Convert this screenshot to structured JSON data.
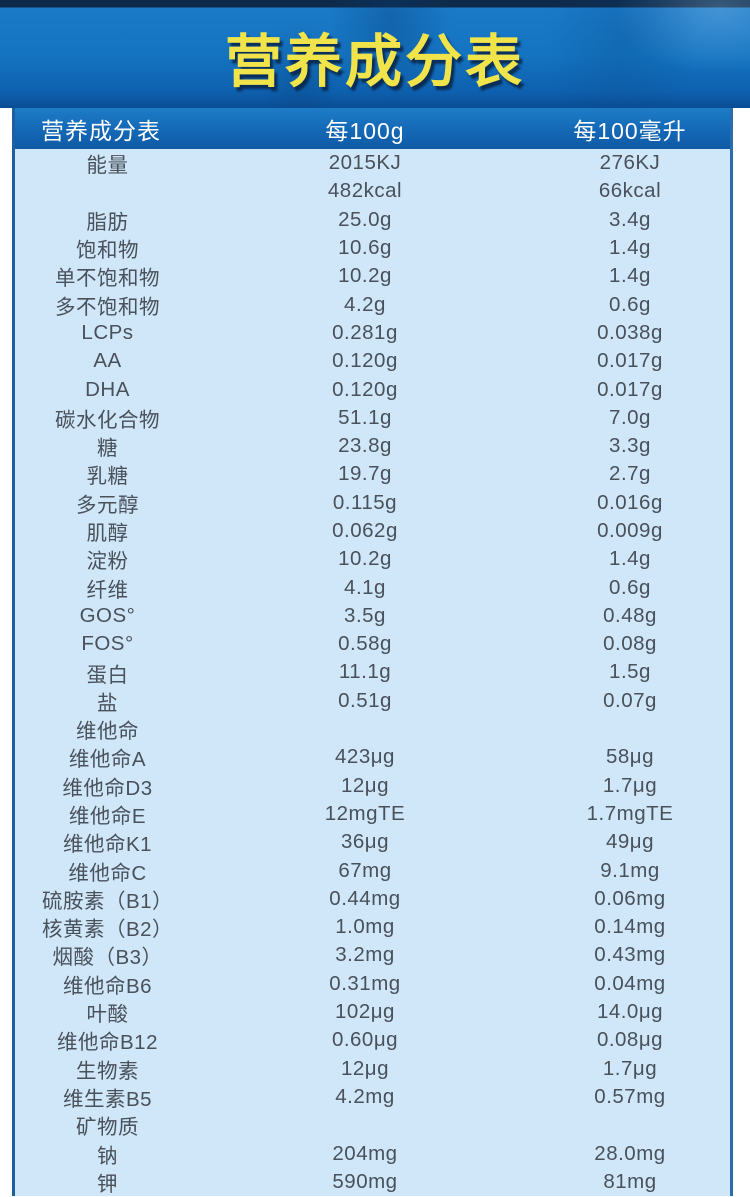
{
  "banner": {
    "title": "营养成分表"
  },
  "table": {
    "headers": [
      "营养成分表",
      "每100g",
      "每100毫升"
    ],
    "rows": [
      {
        "label": "能量",
        "g": "2015KJ",
        "ml": "276KJ"
      },
      {
        "label": "",
        "g": "482kcal",
        "ml": "66kcal"
      },
      {
        "label": "脂肪",
        "g": "25.0g",
        "ml": "3.4g"
      },
      {
        "label": "饱和物",
        "g": "10.6g",
        "ml": "1.4g"
      },
      {
        "label": "单不饱和物",
        "g": "10.2g",
        "ml": "1.4g"
      },
      {
        "label": "多不饱和物",
        "g": "4.2g",
        "ml": "0.6g"
      },
      {
        "label": "LCPs",
        "g": "0.281g",
        "ml": "0.038g"
      },
      {
        "label": "AA",
        "g": "0.120g",
        "ml": "0.017g"
      },
      {
        "label": "DHA",
        "g": "0.120g",
        "ml": "0.017g"
      },
      {
        "label": "碳水化合物",
        "g": "51.1g",
        "ml": "7.0g"
      },
      {
        "label": "糖",
        "g": "23.8g",
        "ml": "3.3g"
      },
      {
        "label": "乳糖",
        "g": "19.7g",
        "ml": "2.7g"
      },
      {
        "label": "多元醇",
        "g": "0.115g",
        "ml": "0.016g"
      },
      {
        "label": "肌醇",
        "g": "0.062g",
        "ml": "0.009g"
      },
      {
        "label": "淀粉",
        "g": "10.2g",
        "ml": "1.4g"
      },
      {
        "label": "纤维",
        "g": "4.1g",
        "ml": "0.6g"
      },
      {
        "label": "GOS°",
        "g": "3.5g",
        "ml": "0.48g"
      },
      {
        "label": "FOS°",
        "g": "0.58g",
        "ml": "0.08g"
      },
      {
        "label": "蛋白",
        "g": "11.1g",
        "ml": "1.5g"
      },
      {
        "label": "盐",
        "g": "0.51g",
        "ml": "0.07g"
      },
      {
        "label": "维他命",
        "g": "",
        "ml": ""
      },
      {
        "label": "维他命A",
        "g": "423μg",
        "ml": "58μg"
      },
      {
        "label": "维他命D3",
        "g": "12μg",
        "ml": "1.7μg"
      },
      {
        "label": "维他命E",
        "g": "12mgTE",
        "ml": "1.7mgTE"
      },
      {
        "label": "维他命K1",
        "g": "36μg",
        "ml": "49μg"
      },
      {
        "label": "维他命C",
        "g": "67mg",
        "ml": "9.1mg"
      },
      {
        "label": "硫胺素（B1）",
        "g": "0.44mg",
        "ml": "0.06mg"
      },
      {
        "label": "核黄素（B2）",
        "g": "1.0mg",
        "ml": "0.14mg"
      },
      {
        "label": "烟酸（B3）",
        "g": "3.2mg",
        "ml": "0.43mg"
      },
      {
        "label": "维他命B6",
        "g": "0.31mg",
        "ml": "0.04mg"
      },
      {
        "label": "叶酸",
        "g": "102μg",
        "ml": "14.0μg"
      },
      {
        "label": "维他命B12",
        "g": "0.60μg",
        "ml": "0.08μg"
      },
      {
        "label": "生物素",
        "g": "12μg",
        "ml": "1.7μg"
      },
      {
        "label": "维生素B5",
        "g": "4.2mg",
        "ml": "0.57mg"
      },
      {
        "label": "矿物质",
        "g": "",
        "ml": ""
      },
      {
        "label": "钠",
        "g": "204mg",
        "ml": "28.0mg"
      },
      {
        "label": "钾",
        "g": "590mg",
        "ml": "81mg"
      }
    ],
    "colors": {
      "banner_blue": "#1474c1",
      "banner_title_yellow": "#f0e44a",
      "header_row_blue": "#1468b6",
      "body_light_blue": "#cfe7f8",
      "border_blue": "#1d5e9f",
      "body_text": "#49515b"
    }
  }
}
